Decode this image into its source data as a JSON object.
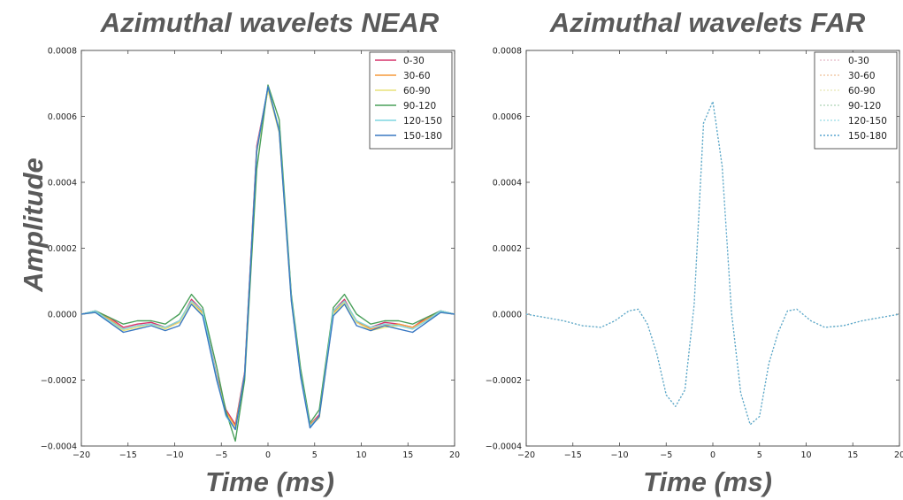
{
  "chart_data": [
    {
      "type": "line",
      "title": "Azimuthal wavelets NEAR",
      "xlabel": "Time (ms)",
      "ylabel": "Amplitude",
      "xlim": [
        -20,
        20
      ],
      "ylim": [
        -0.0004,
        0.0008
      ],
      "xticks": [
        -20,
        -15,
        -10,
        -5,
        0,
        5,
        10,
        15,
        20
      ],
      "yticks": [
        -0.0004,
        -0.0002,
        0.0,
        0.0002,
        0.0004,
        0.0006,
        0.0008
      ],
      "xtick_labels": [
        "−20",
        "−15",
        "−10",
        "−5",
        "0",
        "5",
        "10",
        "15",
        "20"
      ],
      "ytick_labels": [
        "−0.0004",
        "−0.0002",
        "0.0000",
        "0.0002",
        "0.0004",
        "0.0006",
        "0.0008"
      ],
      "legend_position": "top-right",
      "x": [
        -20,
        -18.5,
        -17,
        -15.5,
        -14,
        -12.5,
        -11,
        -9.5,
        -8.2,
        -7,
        -5.5,
        -4.5,
        -3.5,
        -2.5,
        -1.2,
        0,
        1.2,
        2.5,
        3.5,
        4.5,
        5.5,
        7,
        8.2,
        9.5,
        11,
        12.5,
        14,
        15.5,
        17,
        18.5,
        20
      ],
      "series": [
        {
          "name": "0-30",
          "color": "#d6336c",
          "dashed": false,
          "values": [
            0.0,
            1e-05,
            -1e-05,
            -4e-05,
            -3e-05,
            -2.5e-05,
            -4e-05,
            -2.5e-05,
            4.5e-05,
            1e-05,
            -0.000185,
            -0.00029,
            -0.000335,
            -0.000175,
            0.00051,
            0.000685,
            0.00056,
            5.5e-05,
            -0.00018,
            -0.000335,
            -0.000305,
            1e-05,
            4.5e-05,
            -2.5e-05,
            -4e-05,
            -2.5e-05,
            -3e-05,
            -4e-05,
            -1e-05,
            1e-05,
            0.0
          ]
        },
        {
          "name": "30-60",
          "color": "#f59a3c",
          "dashed": false,
          "values": [
            0.0,
            1e-05,
            -1.5e-05,
            -4.5e-05,
            -3.5e-05,
            -3e-05,
            -4e-05,
            -2e-05,
            4e-05,
            5e-06,
            -0.00019,
            -0.000295,
            -0.00034,
            -0.00018,
            0.0005,
            0.00068,
            0.000555,
            5e-05,
            -0.00018,
            -0.000335,
            -0.00031,
            5e-06,
            4e-05,
            -2e-05,
            -4.5e-05,
            -3.5e-05,
            -3e-05,
            -4e-05,
            -1.5e-05,
            1e-05,
            0.0
          ]
        },
        {
          "name": "60-90",
          "color": "#e8e27a",
          "dashed": false,
          "values": [
            0.0,
            5e-06,
            -2e-05,
            -5e-05,
            -4e-05,
            -3e-05,
            -4.5e-05,
            -2.5e-05,
            3.5e-05,
            0.0,
            -0.000195,
            -0.0003,
            -0.00035,
            -0.00019,
            0.00049,
            0.00068,
            0.00055,
            4e-05,
            -0.000185,
            -0.00034,
            -0.000315,
            0.0,
            3.5e-05,
            -2.5e-05,
            -5e-05,
            -4e-05,
            -3.5e-05,
            -4.5e-05,
            -2e-05,
            5e-06,
            0.0
          ]
        },
        {
          "name": "90-120",
          "color": "#4aa05a",
          "dashed": false,
          "values": [
            0.0,
            1e-05,
            -1e-05,
            -3e-05,
            -2e-05,
            -2e-05,
            -3e-05,
            0.0,
            6e-05,
            2e-05,
            -0.00016,
            -0.000295,
            -0.000385,
            -0.0002,
            0.00044,
            0.000695,
            0.00059,
            6e-05,
            -0.000165,
            -0.00033,
            -0.00029,
            2e-05,
            6e-05,
            0.0,
            -3e-05,
            -2e-05,
            -2e-05,
            -3e-05,
            -1e-05,
            1e-05,
            0.0
          ]
        },
        {
          "name": "120-150",
          "color": "#7fd6e0",
          "dashed": false,
          "values": [
            0.0,
            1e-05,
            -2e-05,
            -4.5e-05,
            -3.5e-05,
            -3e-05,
            -4e-05,
            -2e-05,
            4e-05,
            1e-05,
            -0.00019,
            -0.00031,
            -0.00035,
            -0.00018,
            0.0005,
            0.00069,
            0.00056,
            5e-05,
            -0.000185,
            -0.00034,
            -0.00031,
            1e-05,
            4e-05,
            -2e-05,
            -4e-05,
            -3e-05,
            -3.5e-05,
            -4.5e-05,
            -2e-05,
            1e-05,
            0.0
          ]
        },
        {
          "name": "150-180",
          "color": "#3a78c2",
          "dashed": false,
          "values": [
            0.0,
            5e-06,
            -2.5e-05,
            -5.5e-05,
            -4.5e-05,
            -3.5e-05,
            -5e-05,
            -3.5e-05,
            3e-05,
            -5e-06,
            -0.0002,
            -0.000305,
            -0.00035,
            -0.000185,
            0.000495,
            0.00069,
            0.000555,
            4e-05,
            -0.00019,
            -0.000345,
            -0.00031,
            -5e-06,
            3e-05,
            -3.5e-05,
            -5e-05,
            -3.5e-05,
            -4.5e-05,
            -5.5e-05,
            -2.5e-05,
            5e-06,
            0.0
          ]
        }
      ]
    },
    {
      "type": "line",
      "title": "Azimuthal wavelets FAR",
      "xlabel": "Time (ms)",
      "ylabel": "",
      "xlim": [
        -20,
        20
      ],
      "ylim": [
        -0.0004,
        0.0008
      ],
      "xticks": [
        -20,
        -15,
        -10,
        -5,
        0,
        5,
        10,
        15,
        20
      ],
      "yticks": [
        -0.0004,
        -0.0002,
        0.0,
        0.0002,
        0.0004,
        0.0006,
        0.0008
      ],
      "xtick_labels": [
        "−20",
        "−15",
        "−10",
        "−5",
        "0",
        "5",
        "10",
        "15",
        "20"
      ],
      "ytick_labels": [
        "−0.0004",
        "−0.0002",
        "0.0000",
        "0.0002",
        "0.0004",
        "0.0006",
        "0.0008"
      ],
      "legend_position": "top-right",
      "x": [
        -20,
        -18,
        -16,
        -14,
        -12,
        -10.5,
        -9,
        -8,
        -7,
        -6,
        -5,
        -4,
        -3,
        -2,
        -1,
        0,
        1,
        2,
        3,
        4,
        5,
        6,
        7,
        8,
        9,
        10.5,
        12,
        14,
        16,
        18,
        20
      ],
      "series": [
        {
          "name": "0-30",
          "color": "#e9c3cf",
          "dashed": true,
          "values": [
            0.0,
            -1e-05,
            -2e-05,
            -3.5e-05,
            -4e-05,
            -2e-05,
            1e-05,
            1.5e-05,
            -3e-05,
            -0.00012,
            -0.000245,
            -0.00028,
            -0.00023,
            3e-05,
            0.00058,
            0.000645,
            0.00045,
            5e-06,
            -0.00024,
            -0.000335,
            -0.00031,
            -0.00015,
            -5.5e-05,
            1e-05,
            1.5e-05,
            -2e-05,
            -4e-05,
            -3.5e-05,
            -2e-05,
            -1e-05,
            0.0
          ]
        },
        {
          "name": "30-60",
          "color": "#f2ccaa",
          "dashed": true,
          "values": [
            0.0,
            -1e-05,
            -2e-05,
            -3.5e-05,
            -4e-05,
            -2e-05,
            1e-05,
            1.5e-05,
            -3e-05,
            -0.00012,
            -0.000245,
            -0.00028,
            -0.00023,
            3e-05,
            0.00058,
            0.000645,
            0.00045,
            5e-06,
            -0.00024,
            -0.000335,
            -0.00031,
            -0.00015,
            -5.5e-05,
            1e-05,
            1.5e-05,
            -2e-05,
            -4e-05,
            -3.5e-05,
            -2e-05,
            -1e-05,
            0.0
          ]
        },
        {
          "name": "60-90",
          "color": "#ecebc0",
          "dashed": true,
          "values": [
            0.0,
            -1e-05,
            -2e-05,
            -3.5e-05,
            -4e-05,
            -2e-05,
            1e-05,
            1.5e-05,
            -3e-05,
            -0.00012,
            -0.000245,
            -0.00028,
            -0.00023,
            3e-05,
            0.00058,
            0.000645,
            0.00045,
            5e-06,
            -0.00024,
            -0.000335,
            -0.00031,
            -0.00015,
            -5.5e-05,
            1e-05,
            1.5e-05,
            -2e-05,
            -4e-05,
            -3.5e-05,
            -2e-05,
            -1e-05,
            0.0
          ]
        },
        {
          "name": "90-120",
          "color": "#bcdcc2",
          "dashed": true,
          "values": [
            0.0,
            -1e-05,
            -2e-05,
            -3.5e-05,
            -4e-05,
            -2e-05,
            1e-05,
            1.5e-05,
            -3e-05,
            -0.00012,
            -0.000245,
            -0.00028,
            -0.00023,
            3e-05,
            0.00058,
            0.000645,
            0.00045,
            5e-06,
            -0.00024,
            -0.000335,
            -0.00031,
            -0.00015,
            -5.5e-05,
            1e-05,
            1.5e-05,
            -2e-05,
            -4e-05,
            -3.5e-05,
            -2e-05,
            -1e-05,
            0.0
          ]
        },
        {
          "name": "120-150",
          "color": "#a8e2ea",
          "dashed": true,
          "values": [
            0.0,
            -1e-05,
            -2e-05,
            -3.5e-05,
            -4e-05,
            -2e-05,
            1e-05,
            1.5e-05,
            -3e-05,
            -0.00012,
            -0.000245,
            -0.00028,
            -0.00023,
            3e-05,
            0.00058,
            0.000645,
            0.00045,
            5e-06,
            -0.00024,
            -0.000335,
            -0.00031,
            -0.00015,
            -5.5e-05,
            1e-05,
            1.5e-05,
            -2e-05,
            -4e-05,
            -3.5e-05,
            -2e-05,
            -1e-05,
            0.0
          ]
        },
        {
          "name": "150-180",
          "color": "#5aa6d0",
          "dashed": true,
          "values": [
            0.0,
            -1e-05,
            -2e-05,
            -3.5e-05,
            -4e-05,
            -2e-05,
            1e-05,
            1.5e-05,
            -3e-05,
            -0.00012,
            -0.000245,
            -0.00028,
            -0.00023,
            3e-05,
            0.00058,
            0.000645,
            0.00045,
            5e-06,
            -0.00024,
            -0.000335,
            -0.00031,
            -0.00015,
            -5.5e-05,
            1e-05,
            1.5e-05,
            -2e-05,
            -4e-05,
            -3.5e-05,
            -2e-05,
            -1e-05,
            0.0
          ]
        }
      ]
    }
  ]
}
